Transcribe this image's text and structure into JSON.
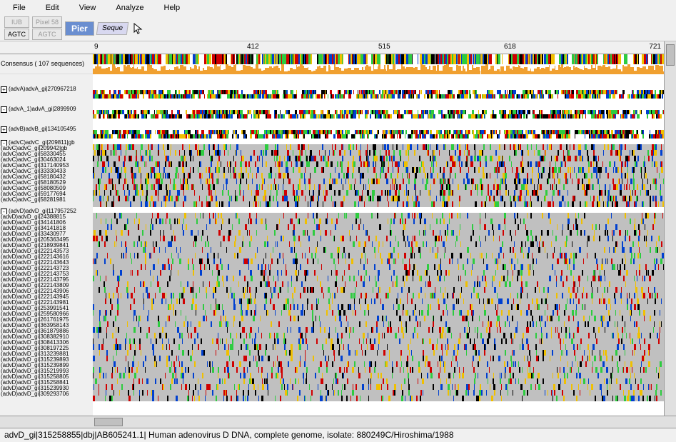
{
  "menu": {
    "items": [
      "File",
      "Edit",
      "View",
      "Analyze",
      "Help"
    ]
  },
  "toolbar": {
    "iub": "IUB",
    "agtc": "AGTC",
    "pixel": "Pixel 58",
    "agtc2": "AGTC",
    "pier": "Pier",
    "seq": "Seque"
  },
  "ruler": {
    "start": "9",
    "t1": "412",
    "t2": "515",
    "t3": "618",
    "end": "721"
  },
  "consensus_label": "Consensus ( 107 sequences)",
  "groups": [
    {
      "exp": "+",
      "label": "(advA)advA_gi|270967218"
    },
    {
      "exp": "-",
      "label": "(advA_1)advA_gi|2899909"
    },
    {
      "exp": "+",
      "label": "(advB)advB_gi|134105495"
    }
  ],
  "advC": [
    {
      "exp": "-",
      "label": "(advC)advC_gi|209811|gb"
    },
    {
      "exp": "",
      "label": "(advC)advC_gi|209942|gb"
    },
    {
      "exp": "",
      "label": "(advC)advC_gi|58330455"
    },
    {
      "exp": "",
      "label": "(advC)advC_gi|30463024"
    },
    {
      "exp": "",
      "label": "(advC)advC_gi|317140953"
    },
    {
      "exp": "",
      "label": "(advC)advC_gi|33330433"
    },
    {
      "exp": "",
      "label": "(advC)advC_gi|58180432"
    },
    {
      "exp": "",
      "label": "(advC)advC_gi|58180529"
    },
    {
      "exp": "",
      "label": "(advC)advC_gi|58080509"
    },
    {
      "exp": "",
      "label": "(advC)advC_gi|59177694"
    },
    {
      "exp": "",
      "label": "(advC)advC_gi|58281981"
    }
  ],
  "advD": [
    {
      "exp": "-",
      "label": "(advD)advD_gi|117957252"
    },
    {
      "label": "(advD)advD_gi|24388815"
    },
    {
      "label": "(advD)advD_gi|34141806"
    },
    {
      "label": "(advD)advD_gi|34141818"
    },
    {
      "label": "(advD)advD_gi|33430977"
    },
    {
      "label": "(advD)advD_gi|205363495"
    },
    {
      "label": "(advD)advD_gi|218939841"
    },
    {
      "label": "(advD)advD_gi|222143573"
    },
    {
      "label": "(advD)advD_gi|222143616"
    },
    {
      "label": "(advD)advD_gi|222143643"
    },
    {
      "label": "(advD)advD_gi|222143723"
    },
    {
      "label": "(advD)advD_gi|222143753"
    },
    {
      "label": "(advD)advD_gi|222143795"
    },
    {
      "label": "(advD)advD_gi|222143809"
    },
    {
      "label": "(advD)advD_gi|222143906"
    },
    {
      "label": "(advD)advD_gi|222143945"
    },
    {
      "label": "(advD)advD_gi|222143981"
    },
    {
      "label": "(advD)advD_gi|253991541"
    },
    {
      "label": "(advD)advD_gi|259580966"
    },
    {
      "label": "(advD)advD_gi|261761975"
    },
    {
      "label": "(advD)advD_gi|363958143"
    },
    {
      "label": "(advD)advD_gi|361879886"
    },
    {
      "label": "(advD)advD_gi|308382910"
    },
    {
      "label": "(advD)advD_gi|308413306"
    },
    {
      "label": "(advD)advD_gi|308197225"
    },
    {
      "label": "(advD)advD_gi|313239881"
    },
    {
      "label": "(advD)advD_gi|315239893"
    },
    {
      "label": "(advD)advD_gi|315239899"
    },
    {
      "label": "(advD)advD_gi|315219993"
    },
    {
      "label": "(advD)advD_gi|315258805"
    },
    {
      "label": "(advD)advD_gi|315258841"
    },
    {
      "label": "(advD)advD_gi|315239930"
    },
    {
      "label": "(advD)advD_gi|309293706"
    }
  ],
  "status": "advD_gi|315258855|dbj|AB605241.1| Human adenovirus D DNA, complete genome, isolate: 880249C/Hiroshima/1988",
  "colors": {
    "A": "#2ecc40",
    "T": "#d00000",
    "G": "#000000",
    "C": "#0040d0",
    "Y": "#f0c000",
    "quality": "#f0a030",
    "rowbg": "#c0c0c0"
  },
  "view_width": 800
}
